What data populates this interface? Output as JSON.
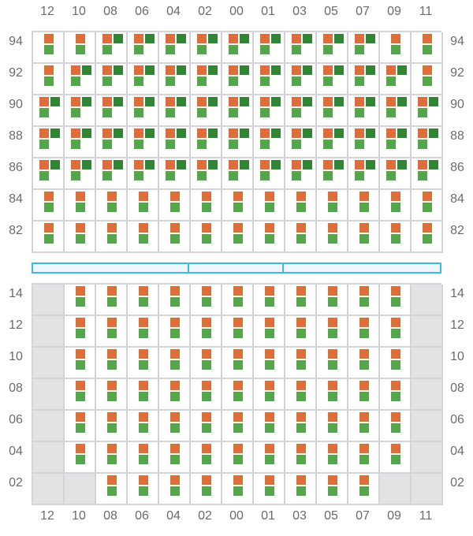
{
  "colors": {
    "orange": "#e06c37",
    "green": "#55a64b",
    "dark_green": "#2e8532",
    "grid": "#d3d3d6",
    "unavailable": "#e3e3e5",
    "divider": "#3bb9f0"
  },
  "columns": [
    "12",
    "10",
    "08",
    "06",
    "04",
    "02",
    "00",
    "01",
    "03",
    "05",
    "07",
    "09",
    "11"
  ],
  "upper": {
    "rows": [
      {
        "label": "94",
        "dark": [
          "08",
          "06",
          "04",
          "02",
          "00",
          "01",
          "03",
          "05",
          "07"
        ],
        "unavailable": []
      },
      {
        "label": "92",
        "dark": [
          "10",
          "08",
          "06",
          "04",
          "02",
          "00",
          "01",
          "03",
          "05",
          "07",
          "09"
        ],
        "unavailable": []
      },
      {
        "label": "90",
        "dark": "all",
        "unavailable": []
      },
      {
        "label": "88",
        "dark": "all",
        "unavailable": []
      },
      {
        "label": "86",
        "dark": "all",
        "unavailable": []
      },
      {
        "label": "84",
        "dark": [],
        "unavailable": []
      },
      {
        "label": "82",
        "dark": [],
        "unavailable": []
      }
    ]
  },
  "divider_segments": [
    5,
    3,
    5
  ],
  "lower": {
    "rows": [
      {
        "label": "14",
        "dark": [],
        "unavailable": [
          "12",
          "11"
        ]
      },
      {
        "label": "12",
        "dark": [],
        "unavailable": [
          "12",
          "11"
        ]
      },
      {
        "label": "10",
        "dark": [],
        "unavailable": [
          "12",
          "11"
        ]
      },
      {
        "label": "08",
        "dark": [],
        "unavailable": [
          "12",
          "11"
        ]
      },
      {
        "label": "06",
        "dark": [],
        "unavailable": [
          "12",
          "11"
        ]
      },
      {
        "label": "04",
        "dark": [],
        "unavailable": [
          "12",
          "11"
        ]
      },
      {
        "label": "02",
        "dark": [],
        "unavailable": [
          "12",
          "10",
          "09",
          "11"
        ]
      }
    ]
  }
}
